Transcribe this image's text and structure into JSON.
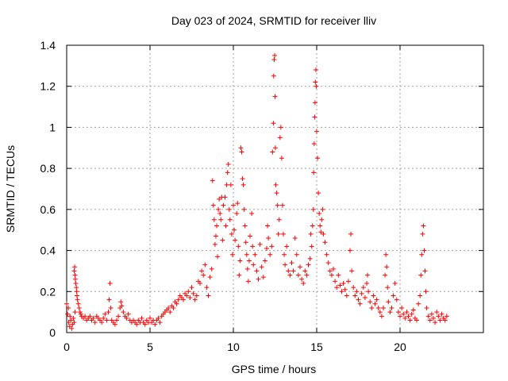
{
  "chart_data": {
    "type": "scatter",
    "title": "Day 023 of 2024, SRMTID for receiver lliv",
    "xlabel": "GPS time / hours",
    "ylabel": "SRMTID / TECUs",
    "xlim": [
      0,
      25
    ],
    "ylim": [
      0,
      1.4
    ],
    "x_ticks": [
      0,
      5,
      10,
      15,
      20
    ],
    "x_tick_labels": [
      "0",
      "5",
      "10",
      "15",
      "20"
    ],
    "y_ticks": [
      0,
      0.2,
      0.4,
      0.6,
      0.8,
      1.0,
      1.2,
      1.4
    ],
    "y_tick_labels": [
      "0",
      "0.2",
      "0.4",
      "0.6",
      "0.8",
      "1",
      "1.2",
      "1.4"
    ],
    "grid": true,
    "marker": "+",
    "series": [
      {
        "name": "SRMTID",
        "color": "#ff0000",
        "points": [
          [
            0.0,
            0.14
          ],
          [
            0.05,
            0.09
          ],
          [
            0.1,
            0.12
          ],
          [
            0.12,
            0.05
          ],
          [
            0.18,
            0.03
          ],
          [
            0.2,
            0.08
          ],
          [
            0.25,
            0.06
          ],
          [
            0.3,
            0.02
          ],
          [
            0.35,
            0.04
          ],
          [
            0.4,
            0.07
          ],
          [
            0.45,
            0.05
          ],
          [
            0.5,
            0.1
          ],
          [
            0.45,
            0.3
          ],
          [
            0.48,
            0.32
          ],
          [
            0.5,
            0.28
          ],
          [
            0.52,
            0.26
          ],
          [
            0.55,
            0.24
          ],
          [
            0.58,
            0.22
          ],
          [
            0.6,
            0.2
          ],
          [
            0.62,
            0.18
          ],
          [
            0.65,
            0.16
          ],
          [
            0.7,
            0.14
          ],
          [
            0.75,
            0.12
          ],
          [
            0.8,
            0.1
          ],
          [
            0.85,
            0.09
          ],
          [
            0.9,
            0.08
          ],
          [
            1.0,
            0.07
          ],
          [
            1.1,
            0.08
          ],
          [
            1.2,
            0.06
          ],
          [
            1.3,
            0.07
          ],
          [
            1.4,
            0.08
          ],
          [
            1.5,
            0.06
          ],
          [
            1.6,
            0.07
          ],
          [
            1.7,
            0.05
          ],
          [
            1.8,
            0.08
          ],
          [
            1.9,
            0.07
          ],
          [
            2.0,
            0.06
          ],
          [
            2.1,
            0.05
          ],
          [
            2.2,
            0.07
          ],
          [
            2.3,
            0.09
          ],
          [
            2.4,
            0.06
          ],
          [
            2.5,
            0.1
          ],
          [
            2.55,
            0.16
          ],
          [
            2.6,
            0.24
          ],
          [
            2.65,
            0.12
          ],
          [
            2.7,
            0.06
          ],
          [
            2.8,
            0.05
          ],
          [
            2.9,
            0.04
          ],
          [
            3.0,
            0.06
          ],
          [
            3.1,
            0.08
          ],
          [
            3.2,
            0.12
          ],
          [
            3.25,
            0.15
          ],
          [
            3.3,
            0.13
          ],
          [
            3.4,
            0.1
          ],
          [
            3.5,
            0.08
          ],
          [
            3.6,
            0.07
          ],
          [
            3.7,
            0.09
          ],
          [
            3.8,
            0.06
          ],
          [
            3.9,
            0.05
          ],
          [
            4.0,
            0.06
          ],
          [
            4.1,
            0.05
          ],
          [
            4.2,
            0.04
          ],
          [
            4.3,
            0.06
          ],
          [
            4.4,
            0.05
          ],
          [
            4.5,
            0.07
          ],
          [
            4.6,
            0.05
          ],
          [
            4.7,
            0.04
          ],
          [
            4.8,
            0.06
          ],
          [
            4.9,
            0.05
          ],
          [
            5.0,
            0.07
          ],
          [
            5.1,
            0.05
          ],
          [
            5.2,
            0.06
          ],
          [
            5.3,
            0.04
          ],
          [
            5.4,
            0.06
          ],
          [
            5.5,
            0.07
          ],
          [
            5.6,
            0.05
          ],
          [
            5.7,
            0.08
          ],
          [
            5.8,
            0.09
          ],
          [
            5.9,
            0.1
          ],
          [
            6.0,
            0.11
          ],
          [
            6.1,
            0.12
          ],
          [
            6.2,
            0.1
          ],
          [
            6.3,
            0.13
          ],
          [
            6.4,
            0.12
          ],
          [
            6.5,
            0.15
          ],
          [
            6.6,
            0.14
          ],
          [
            6.7,
            0.16
          ],
          [
            6.8,
            0.18
          ],
          [
            6.9,
            0.17
          ],
          [
            7.0,
            0.16
          ],
          [
            7.1,
            0.19
          ],
          [
            7.2,
            0.18
          ],
          [
            7.3,
            0.2
          ],
          [
            7.4,
            0.17
          ],
          [
            7.5,
            0.22
          ],
          [
            7.6,
            0.19
          ],
          [
            7.7,
            0.16
          ],
          [
            7.8,
            0.18
          ],
          [
            7.9,
            0.25
          ],
          [
            8.0,
            0.24
          ],
          [
            8.1,
            0.3
          ],
          [
            8.2,
            0.28
          ],
          [
            8.3,
            0.33
          ],
          [
            8.4,
            0.22
          ],
          [
            8.5,
            0.18
          ],
          [
            8.6,
            0.27
          ],
          [
            8.7,
            0.31
          ],
          [
            8.75,
            0.74
          ],
          [
            8.8,
            0.62
          ],
          [
            8.85,
            0.55
          ],
          [
            8.9,
            0.43
          ],
          [
            8.95,
            0.47
          ],
          [
            9.0,
            0.52
          ],
          [
            9.05,
            0.37
          ],
          [
            9.1,
            0.6
          ],
          [
            9.15,
            0.65
          ],
          [
            9.2,
            0.58
          ],
          [
            9.25,
            0.55
          ],
          [
            9.3,
            0.66
          ],
          [
            9.35,
            0.45
          ],
          [
            9.4,
            0.62
          ],
          [
            9.5,
            0.66
          ],
          [
            9.55,
            0.52
          ],
          [
            9.6,
            0.72
          ],
          [
            9.65,
            0.78
          ],
          [
            9.7,
            0.82
          ],
          [
            9.75,
            0.6
          ],
          [
            9.8,
            0.55
          ],
          [
            9.85,
            0.72
          ],
          [
            9.9,
            0.48
          ],
          [
            9.95,
            0.38
          ],
          [
            10.0,
            0.62
          ],
          [
            10.05,
            0.5
          ],
          [
            10.1,
            0.45
          ],
          [
            10.2,
            0.58
          ],
          [
            10.25,
            0.63
          ],
          [
            10.3,
            0.42
          ],
          [
            10.35,
            0.28
          ],
          [
            10.4,
            0.35
          ],
          [
            10.45,
            0.9
          ],
          [
            10.5,
            0.88
          ],
          [
            10.55,
            0.75
          ],
          [
            10.6,
            0.72
          ],
          [
            10.65,
            0.6
          ],
          [
            10.7,
            0.52
          ],
          [
            10.75,
            0.44
          ],
          [
            10.8,
            0.38
          ],
          [
            10.85,
            0.31
          ],
          [
            10.9,
            0.25
          ],
          [
            10.95,
            0.35
          ],
          [
            11.0,
            0.47
          ],
          [
            11.1,
            0.58
          ],
          [
            11.15,
            0.42
          ],
          [
            11.2,
            0.33
          ],
          [
            11.3,
            0.38
          ],
          [
            11.4,
            0.3
          ],
          [
            11.5,
            0.26
          ],
          [
            11.6,
            0.43
          ],
          [
            11.7,
            0.32
          ],
          [
            11.8,
            0.27
          ],
          [
            11.9,
            0.35
          ],
          [
            12.0,
            0.41
          ],
          [
            12.05,
            0.52
          ],
          [
            12.1,
            0.46
          ],
          [
            12.2,
            0.38
          ],
          [
            12.3,
            0.42
          ],
          [
            12.35,
            0.88
          ],
          [
            12.4,
            1.02
          ],
          [
            12.42,
            1.25
          ],
          [
            12.45,
            1.33
          ],
          [
            12.48,
            1.35
          ],
          [
            12.5,
            1.15
          ],
          [
            12.52,
            0.9
          ],
          [
            12.55,
            0.72
          ],
          [
            12.6,
            0.68
          ],
          [
            12.65,
            0.62
          ],
          [
            12.7,
            0.48
          ],
          [
            12.75,
            0.55
          ],
          [
            12.8,
            0.95
          ],
          [
            12.85,
            1.0
          ],
          [
            12.9,
            0.85
          ],
          [
            12.95,
            0.62
          ],
          [
            13.0,
            0.48
          ],
          [
            13.05,
            0.38
          ],
          [
            13.1,
            0.33
          ],
          [
            13.2,
            0.42
          ],
          [
            13.3,
            0.3
          ],
          [
            13.4,
            0.28
          ],
          [
            13.5,
            0.34
          ],
          [
            13.6,
            0.3
          ],
          [
            13.7,
            0.46
          ],
          [
            13.8,
            0.38
          ],
          [
            13.9,
            0.28
          ],
          [
            14.0,
            0.32
          ],
          [
            14.1,
            0.26
          ],
          [
            14.2,
            0.24
          ],
          [
            14.3,
            0.3
          ],
          [
            14.4,
            0.28
          ],
          [
            14.5,
            0.33
          ],
          [
            14.6,
            0.36
          ],
          [
            14.65,
            0.48
          ],
          [
            14.7,
            0.42
          ],
          [
            14.75,
            0.52
          ],
          [
            14.8,
            0.6
          ],
          [
            14.82,
            0.78
          ],
          [
            14.85,
            0.92
          ],
          [
            14.88,
            1.05
          ],
          [
            14.9,
            1.12
          ],
          [
            14.92,
            1.22
          ],
          [
            14.95,
            1.28
          ],
          [
            14.97,
            1.2
          ],
          [
            15.0,
            0.98
          ],
          [
            15.05,
            0.85
          ],
          [
            15.1,
            0.68
          ],
          [
            15.15,
            0.58
          ],
          [
            15.2,
            0.52
          ],
          [
            15.25,
            0.49
          ],
          [
            15.3,
            0.55
          ],
          [
            15.35,
            0.6
          ],
          [
            15.4,
            0.48
          ],
          [
            15.5,
            0.44
          ],
          [
            15.6,
            0.38
          ],
          [
            15.7,
            0.34
          ],
          [
            15.8,
            0.3
          ],
          [
            15.9,
            0.28
          ],
          [
            16.0,
            0.31
          ],
          [
            16.1,
            0.25
          ],
          [
            16.2,
            0.22
          ],
          [
            16.3,
            0.28
          ],
          [
            16.4,
            0.23
          ],
          [
            16.5,
            0.2
          ],
          [
            16.6,
            0.24
          ],
          [
            16.7,
            0.21
          ],
          [
            16.8,
            0.18
          ],
          [
            16.9,
            0.25
          ],
          [
            17.0,
            0.4
          ],
          [
            17.05,
            0.48
          ],
          [
            17.1,
            0.3
          ],
          [
            17.2,
            0.22
          ],
          [
            17.3,
            0.18
          ],
          [
            17.4,
            0.2
          ],
          [
            17.5,
            0.16
          ],
          [
            17.6,
            0.14
          ],
          [
            17.7,
            0.19
          ],
          [
            17.8,
            0.22
          ],
          [
            17.9,
            0.17
          ],
          [
            18.0,
            0.24
          ],
          [
            18.05,
            0.28
          ],
          [
            18.1,
            0.2
          ],
          [
            18.2,
            0.15
          ],
          [
            18.3,
            0.12
          ],
          [
            18.4,
            0.18
          ],
          [
            18.5,
            0.14
          ],
          [
            18.6,
            0.16
          ],
          [
            18.7,
            0.12
          ],
          [
            18.8,
            0.1
          ],
          [
            18.9,
            0.08
          ],
          [
            19.0,
            0.12
          ],
          [
            19.1,
            0.28
          ],
          [
            19.15,
            0.38
          ],
          [
            19.2,
            0.32
          ],
          [
            19.25,
            0.22
          ],
          [
            19.3,
            0.15
          ],
          [
            19.4,
            0.1
          ],
          [
            19.5,
            0.12
          ],
          [
            19.6,
            0.18
          ],
          [
            19.7,
            0.24
          ],
          [
            19.8,
            0.16
          ],
          [
            19.9,
            0.1
          ],
          [
            20.0,
            0.08
          ],
          [
            20.1,
            0.12
          ],
          [
            20.2,
            0.09
          ],
          [
            20.3,
            0.07
          ],
          [
            20.4,
            0.1
          ],
          [
            20.5,
            0.08
          ],
          [
            20.6,
            0.06
          ],
          [
            20.7,
            0.09
          ],
          [
            20.8,
            0.11
          ],
          [
            20.9,
            0.07
          ],
          [
            21.0,
            0.06
          ],
          [
            21.1,
            0.14
          ],
          [
            21.2,
            0.18
          ],
          [
            21.25,
            0.28
          ],
          [
            21.3,
            0.38
          ],
          [
            21.35,
            0.48
          ],
          [
            21.4,
            0.52
          ],
          [
            21.45,
            0.4
          ],
          [
            21.5,
            0.3
          ],
          [
            21.55,
            0.2
          ],
          [
            21.6,
            0.12
          ],
          [
            21.7,
            0.08
          ],
          [
            21.8,
            0.06
          ],
          [
            21.9,
            0.09
          ],
          [
            22.0,
            0.07
          ],
          [
            22.1,
            0.05
          ],
          [
            22.2,
            0.1
          ],
          [
            22.3,
            0.08
          ],
          [
            22.4,
            0.06
          ],
          [
            22.5,
            0.09
          ],
          [
            22.6,
            0.07
          ],
          [
            22.7,
            0.06
          ],
          [
            22.8,
            0.08
          ]
        ]
      }
    ]
  }
}
